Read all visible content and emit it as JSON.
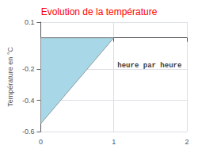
{
  "chart_data": {
    "type": "polygon",
    "title": "Evolution de la température",
    "ylabel": "Température en °C",
    "x": [
      0,
      0,
      1,
      0
    ],
    "values": [
      0,
      -0.55,
      0,
      0
    ],
    "color": "#a8d8e8",
    "xlim": [
      0,
      2
    ],
    "ylim": [
      -0.6,
      0.1
    ],
    "xticks": [
      0,
      1,
      2
    ],
    "yticks": [
      0.1,
      -0.2,
      -0.4,
      -0.6
    ],
    "grid": true,
    "annotations": [
      {
        "text": "heure par heure",
        "x": 1.05,
        "y": -0.2
      }
    ]
  }
}
